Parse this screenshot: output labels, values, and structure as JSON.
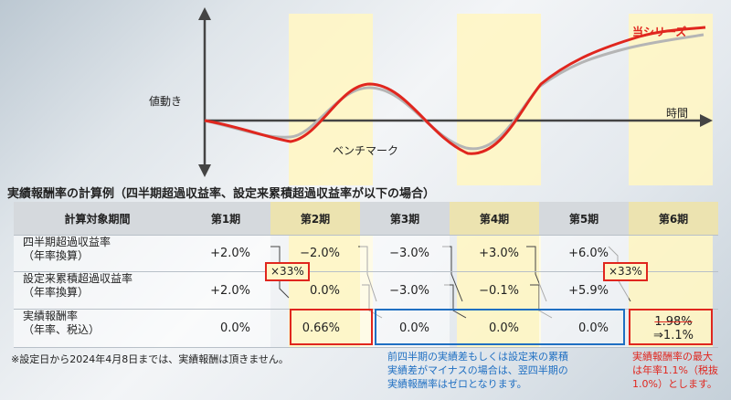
{
  "chart": {
    "y_label": "値動き",
    "x_label": "時間",
    "series_label": "当シリーズ",
    "benchmark_label": "ベンチマーク",
    "colors": {
      "series": "#e0261e",
      "benchmark": "#b5b5b5",
      "highlight": "#fff6c4"
    }
  },
  "table": {
    "title": "実績報酬率の計算例（四半期超過収益率、設定来累積超過収益率が以下の場合）",
    "header": {
      "label": "計算対象期間",
      "periods": [
        "第1期",
        "第2期",
        "第3期",
        "第4期",
        "第5期",
        "第6期"
      ]
    },
    "rows": [
      {
        "label_1": "四半期超過収益率",
        "label_2": "（年率換算）",
        "values": [
          "+2.0%",
          "−2.0%",
          "−3.0%",
          "+3.0%",
          "+6.0%",
          ""
        ]
      },
      {
        "label_1": "設定来累積超過収益率",
        "label_2": "（年率換算）",
        "values": [
          "+2.0%",
          "0.0%",
          "−3.0%",
          "−0.1%",
          "+5.9%",
          ""
        ]
      },
      {
        "label_1": "実績報酬率",
        "label_2": "（年率、税込）",
        "values": [
          "0.0%",
          "0.66%",
          "0.0%",
          "0.0%",
          "0.0%",
          ""
        ]
      }
    ],
    "period6_value_old": "1.98%",
    "period6_value_new": "⇒1.1%",
    "multiplier_1": "×33%",
    "multiplier_2": "×33%"
  },
  "notes": {
    "footnote": "※設定日から2024年4月8日までは、実績報酬は頂きません。",
    "blue_line1": "前四半期の実績差もしくは設定来の累積",
    "blue_line2": "実績差がマイナスの場合は、翌四半期の",
    "blue_line3": "実績報酬率はゼロとなります。",
    "red_line1": "実績報酬率の最大",
    "red_line2": "は年率1.1%（税抜",
    "red_line3": "1.0%）とします。"
  }
}
